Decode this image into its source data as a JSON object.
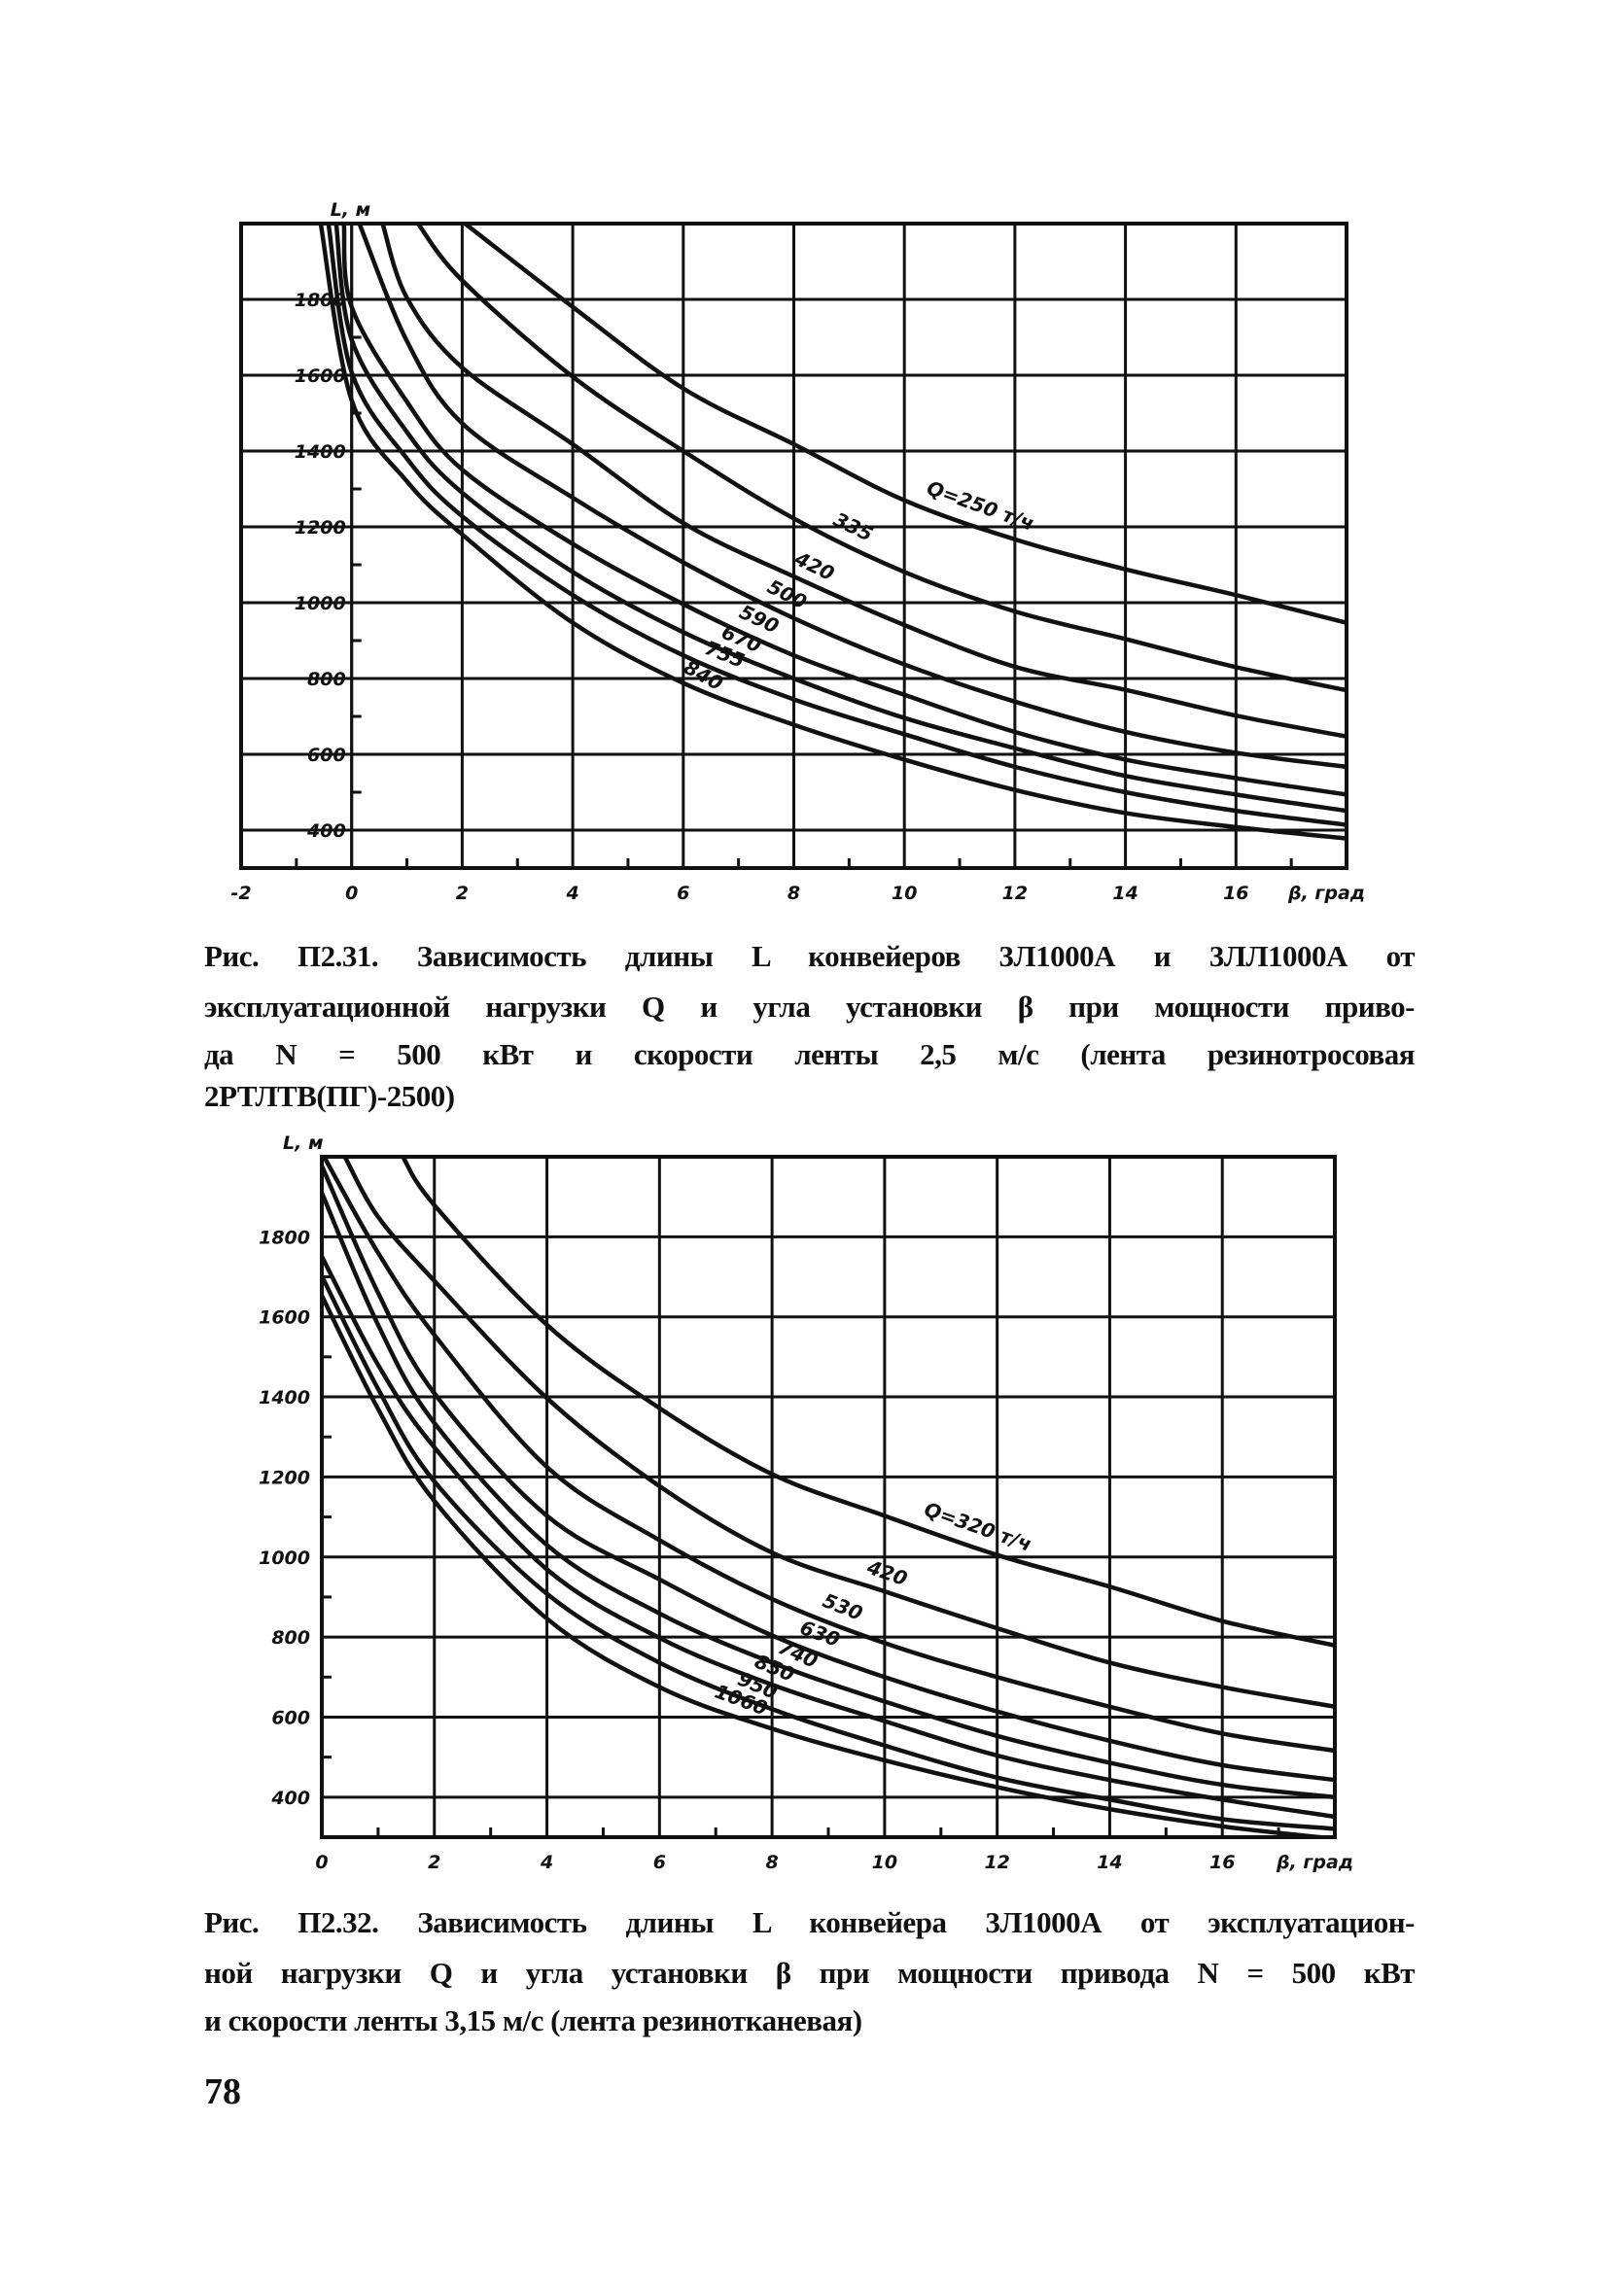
{
  "page_number": "78",
  "figures": [
    {
      "caption_lines": [
        "Рис. П2.31. Зависимость длины L конвейеров 3Л1000А и 3ЛЛ1000А от",
        "эксплуатационной нагрузки Q  и угла установки β при мощности приво-",
        "да N = 500 кВт и скорости ленты    2,5 м/с (лента резинотросовая",
        "2РТЛТВ(ПГ)-2500)"
      ]
    },
    {
      "caption_lines": [
        "Рис. П2.32. Зависимость длины L конвейера 3Л1000А от эксплуатацион-",
        "ной нагрузки Q  и угла установки β при мощности привода N = 500 кВт",
        "и скорости ленты    3,15 м/с (лента резинотканевая)"
      ]
    }
  ],
  "chart_data": [
    {
      "type": "line",
      "title": "Рис. П2.31",
      "xlabel": "β, град",
      "ylabel": "L, м",
      "xlim": [
        -2,
        18
      ],
      "ylim": [
        300,
        2000
      ],
      "grid": true,
      "x_ticks": [
        "-2",
        "0",
        "2",
        "4",
        "6",
        "8",
        "10",
        "12",
        "14",
        "16"
      ],
      "x_tick_values": [
        -2,
        0,
        2,
        4,
        6,
        8,
        10,
        12,
        14,
        16
      ],
      "y_ticks": [
        "1800",
        "1600",
        "1400",
        "1200",
        "1000",
        "800",
        "600",
        "400"
      ],
      "y_tick_values": [
        1800,
        1600,
        1400,
        1200,
        1000,
        800,
        600,
        400
      ],
      "series": [
        {
          "name": "250",
          "label": "Q=250 т/ч",
          "x": [
            2.05,
            4,
            6,
            8,
            10,
            12,
            14,
            16,
            18
          ],
          "y": [
            2000,
            1780,
            1565,
            1418,
            1270,
            1167,
            1088,
            1020,
            947
          ]
        },
        {
          "name": "335",
          "label": "335",
          "x": [
            1.2,
            2,
            4,
            6,
            8,
            10,
            12,
            14,
            16,
            18
          ],
          "y": [
            2000,
            1850,
            1596,
            1400,
            1222,
            1081,
            977,
            904,
            830,
            769
          ]
        },
        {
          "name": "420",
          "label": "420",
          "x": [
            0.56,
            1,
            2,
            4,
            6,
            8,
            10,
            12,
            14,
            16,
            18
          ],
          "y": [
            2000,
            1804,
            1620,
            1418,
            1210,
            1069,
            941,
            831,
            770,
            702,
            647
          ]
        },
        {
          "name": "500",
          "label": "500",
          "x": [
            0.14,
            1,
            2,
            4,
            6,
            8,
            10,
            12,
            14,
            16,
            18
          ],
          "y": [
            2000,
            1690,
            1473,
            1277,
            1106,
            959,
            837,
            739,
            659,
            604,
            567
          ]
        },
        {
          "name": "590",
          "label": "590",
          "x": [
            -0.14,
            0,
            1,
            2,
            4,
            6,
            8,
            10,
            12,
            14,
            16,
            18
          ],
          "y": [
            2000,
            1780,
            1530,
            1351,
            1155,
            996,
            861,
            757,
            659,
            586,
            537,
            494
          ]
        },
        {
          "name": "670",
          "label": "670",
          "x": [
            -0.28,
            0,
            1,
            2,
            4,
            6,
            8,
            10,
            12,
            14,
            16,
            18
          ],
          "y": [
            2000,
            1694,
            1450,
            1290,
            1081,
            922,
            800,
            696,
            616,
            543,
            494,
            451
          ]
        },
        {
          "name": "755",
          "label": "755",
          "x": [
            -0.42,
            0,
            1,
            2,
            4,
            6,
            8,
            10,
            12,
            14,
            16,
            18
          ],
          "y": [
            2000,
            1608,
            1380,
            1228,
            1020,
            861,
            745,
            653,
            567,
            500,
            451,
            414
          ]
        },
        {
          "name": "840",
          "label": "840",
          "x": [
            -0.56,
            0,
            1,
            2,
            4,
            6,
            8,
            10,
            12,
            14,
            16,
            18
          ],
          "y": [
            2000,
            1534,
            1320,
            1180,
            947,
            788,
            678,
            586,
            506,
            445,
            408,
            378
          ]
        }
      ]
    },
    {
      "type": "line",
      "title": "Рис. П2.32",
      "xlabel": "β, град",
      "ylabel": "L, м",
      "xlim": [
        0,
        18
      ],
      "ylim": [
        300,
        2000
      ],
      "grid": true,
      "x_ticks": [
        "0",
        "2",
        "4",
        "6",
        "8",
        "10",
        "12",
        "14",
        "16"
      ],
      "x_tick_values": [
        0,
        2,
        4,
        6,
        8,
        10,
        12,
        14,
        16
      ],
      "y_ticks": [
        "1800",
        "1600",
        "1400",
        "1200",
        "1000",
        "800",
        "600",
        "400"
      ],
      "y_tick_values": [
        1800,
        1600,
        1400,
        1200,
        1000,
        800,
        600,
        400
      ],
      "series": [
        {
          "name": "320",
          "label": "Q=320 т/ч",
          "x": [
            1.44,
            2,
            4,
            6,
            8,
            10,
            12,
            14,
            16,
            18
          ],
          "y": [
            2000,
            1879,
            1580,
            1372,
            1207,
            1103,
            1005,
            926,
            840,
            779
          ]
        },
        {
          "name": "420",
          "label": "420",
          "x": [
            0.41,
            1,
            2,
            4,
            6,
            8,
            10,
            12,
            14,
            16,
            18
          ],
          "y": [
            2000,
            1850,
            1690,
            1397,
            1177,
            1011,
            914,
            822,
            736,
            675,
            626
          ]
        },
        {
          "name": "530",
          "label": "530",
          "x": [
            0.04,
            1,
            2,
            4,
            6,
            8,
            10,
            12,
            14,
            16,
            18
          ],
          "y": [
            2000,
            1760,
            1555,
            1225,
            1042,
            895,
            785,
            700,
            626,
            559,
            516
          ]
        },
        {
          "name": "630",
          "label": "630",
          "x": [
            0,
            1,
            2,
            4,
            6,
            8,
            10,
            12,
            14,
            16,
            18
          ],
          "y": [
            1977,
            1660,
            1409,
            1103,
            944,
            804,
            700,
            614,
            541,
            480,
            443
          ]
        },
        {
          "name": "740",
          "label": "740",
          "x": [
            0,
            1,
            2,
            4,
            6,
            8,
            10,
            12,
            14,
            16,
            18
          ],
          "y": [
            1910,
            1580,
            1335,
            1030,
            859,
            736,
            639,
            553,
            486,
            431,
            400
          ]
        },
        {
          "name": "850",
          "label": "850",
          "x": [
            0,
            1,
            2,
            4,
            6,
            8,
            10,
            12,
            14,
            16,
            18
          ],
          "y": [
            1751,
            1480,
            1274,
            969,
            798,
            681,
            590,
            504,
            443,
            394,
            351
          ]
        },
        {
          "name": "950",
          "label": "950",
          "x": [
            0,
            1,
            2,
            4,
            6,
            8,
            10,
            12,
            14,
            16,
            18
          ],
          "y": [
            1702,
            1420,
            1189,
            908,
            736,
            620,
            529,
            449,
            394,
            345,
            321
          ]
        },
        {
          "name": "1060",
          "label": "1060",
          "x": [
            0,
            1,
            2,
            4,
            6,
            8,
            10,
            12,
            14,
            16,
            18
          ],
          "y": [
            1653,
            1370,
            1140,
            846,
            675,
            571,
            492,
            425,
            370,
            327,
            296
          ]
        }
      ]
    }
  ]
}
